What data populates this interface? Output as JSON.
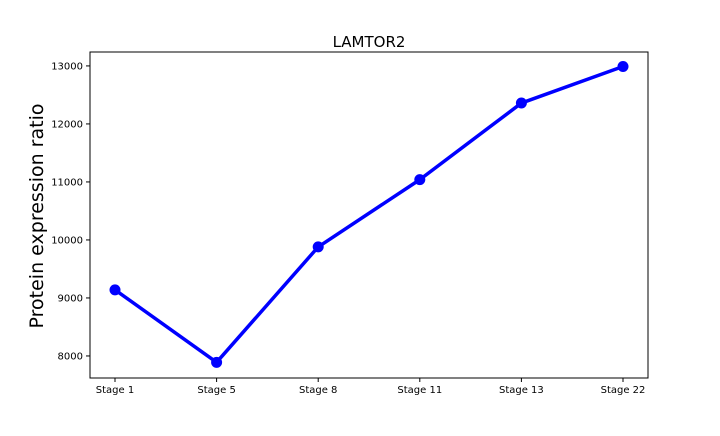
{
  "chart_data": {
    "type": "line",
    "title": "LAMTOR2",
    "xlabel": "",
    "ylabel": "Protein expression ratio",
    "categories": [
      "Stage 1",
      "Stage 5",
      "Stage 8",
      "Stage 11",
      "Stage 13",
      "Stage 22"
    ],
    "series": [
      {
        "values": [
          9140,
          7890,
          9880,
          11040,
          12360,
          12990
        ],
        "color": "#0000ff"
      }
    ],
    "ylim": [
      7620,
      13240
    ],
    "yticks": [
      8000,
      9000,
      10000,
      11000,
      12000,
      13000
    ],
    "grid": false,
    "legend": "none"
  }
}
